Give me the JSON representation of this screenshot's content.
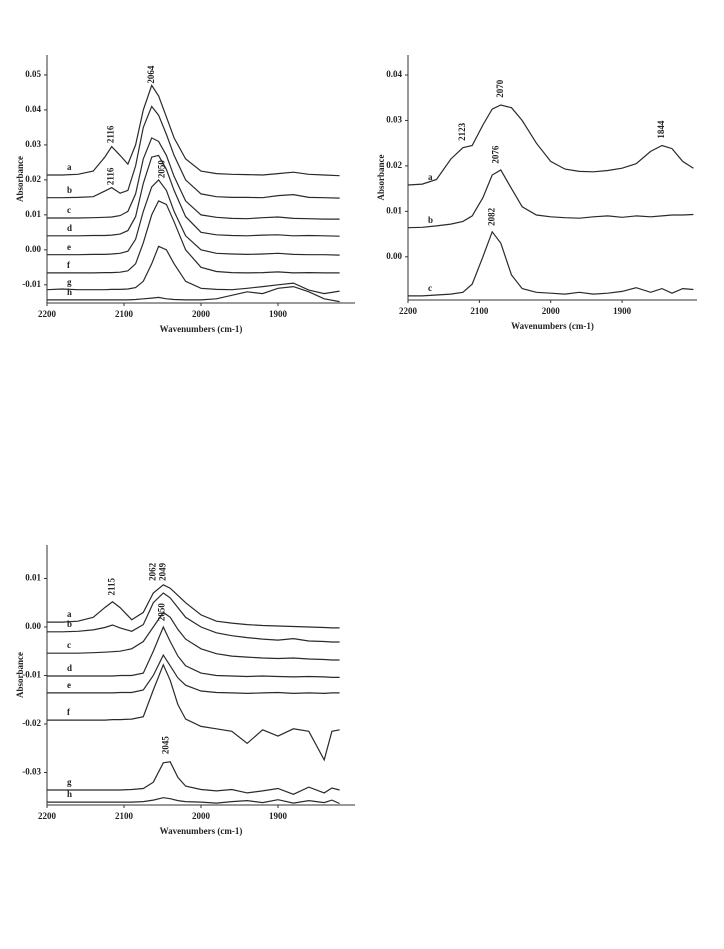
{
  "chart_data": [
    {
      "type": "line",
      "xlabel": "Wavenumbers (cm-1)",
      "ylabel": "Absorbance",
      "color": "#2a2a2a",
      "xlim": [
        2200,
        1800
      ],
      "xticks": [
        2200,
        2100,
        2000,
        1900
      ],
      "ylim": [
        -0.0152,
        0.0557
      ],
      "yticks": [
        0.05,
        0.04,
        0.03,
        0.02,
        0.01,
        {
          "value": 0,
          "label": "0.00"
        },
        -0.01
      ],
      "x": [
        2200,
        2180,
        2160,
        2140,
        2125,
        2116,
        2105,
        2095,
        2085,
        2075,
        2064,
        2055,
        2045,
        2035,
        2020,
        2000,
        1980,
        1960,
        1940,
        1920,
        1900,
        1880,
        1860,
        1840,
        1820
      ],
      "series": [
        {
          "name": "a",
          "values": [
            0.0214,
            0.0214,
            0.0216,
            0.0225,
            0.0265,
            0.0295,
            0.027,
            0.0245,
            0.03,
            0.04,
            0.047,
            0.044,
            0.038,
            0.032,
            0.026,
            0.0225,
            0.0218,
            0.0216,
            0.0215,
            0.0214,
            0.0218,
            0.0222,
            0.0216,
            0.0214,
            0.0212
          ]
        },
        {
          "name": "b",
          "values": [
            0.0149,
            0.0149,
            0.015,
            0.0152,
            0.0168,
            0.0178,
            0.0162,
            0.017,
            0.024,
            0.035,
            0.041,
            0.0385,
            0.033,
            0.027,
            0.02,
            0.016,
            0.0152,
            0.015,
            0.015,
            0.0149,
            0.0155,
            0.0158,
            0.015,
            0.0149,
            0.0148
          ]
        },
        {
          "name": "c",
          "values": [
            0.0091,
            0.0091,
            0.0091,
            0.0092,
            0.0093,
            0.0094,
            0.0098,
            0.011,
            0.016,
            0.026,
            0.032,
            0.031,
            0.027,
            0.021,
            0.014,
            0.01,
            0.0093,
            0.009,
            0.0089,
            0.0092,
            0.0094,
            0.009,
            0.0089,
            0.0088,
            0.0088
          ]
        },
        {
          "name": "d",
          "values": [
            0.004,
            0.004,
            0.004,
            0.0041,
            0.0041,
            0.0042,
            0.0045,
            0.0055,
            0.0095,
            0.019,
            0.0265,
            0.027,
            0.023,
            0.017,
            0.0095,
            0.005,
            0.0043,
            0.0041,
            0.004,
            0.0042,
            0.0043,
            0.004,
            0.0041,
            0.004,
            0.0039
          ]
        },
        {
          "name": "e",
          "values": [
            -0.0014,
            -0.0014,
            -0.0014,
            -0.0013,
            -0.0013,
            -0.0012,
            -0.001,
            -0.0004,
            0.003,
            0.011,
            0.018,
            0.02,
            0.017,
            0.011,
            0.004,
            0.0,
            -0.001,
            -0.0012,
            -0.0013,
            -0.0012,
            -0.001,
            -0.0013,
            -0.0014,
            -0.0014,
            -0.0015
          ]
        },
        {
          "name": "f",
          "values": [
            -0.0066,
            -0.0066,
            -0.0066,
            -0.0066,
            -0.0065,
            -0.0065,
            -0.0064,
            -0.006,
            -0.004,
            0.002,
            0.01,
            0.014,
            0.013,
            0.008,
            0.0,
            -0.005,
            -0.0062,
            -0.0065,
            -0.0066,
            -0.0065,
            -0.0063,
            -0.0066,
            -0.0065,
            -0.0066,
            -0.0066
          ]
        },
        {
          "name": "g",
          "values": [
            -0.0114,
            -0.0112,
            -0.0114,
            -0.0114,
            -0.0114,
            -0.0113,
            -0.0113,
            -0.0112,
            -0.0108,
            -0.009,
            -0.004,
            0.001,
            0.0,
            -0.004,
            -0.009,
            -0.011,
            -0.0113,
            -0.0114,
            -0.011,
            -0.0105,
            -0.01,
            -0.0095,
            -0.0115,
            -0.0125,
            -0.0118
          ]
        },
        {
          "name": "h",
          "values": [
            -0.0143,
            -0.0143,
            -0.0143,
            -0.0143,
            -0.0143,
            -0.0143,
            -0.0143,
            -0.0143,
            -0.0142,
            -0.014,
            -0.0138,
            -0.0136,
            -0.014,
            -0.0142,
            -0.0143,
            -0.0143,
            -0.014,
            -0.013,
            -0.012,
            -0.0125,
            -0.011,
            -0.0105,
            -0.012,
            -0.014,
            -0.0148
          ]
        }
      ],
      "annotations": [
        {
          "label": "2064",
          "x": 2064,
          "y": 0.0475
        },
        {
          "label": "2116",
          "x": 2116,
          "y": 0.0305
        },
        {
          "label": "2116",
          "x": 2116,
          "y": 0.0185
        },
        {
          "label": "2050",
          "x": 2050,
          "y": 0.0205
        }
      ]
    },
    {
      "type": "line",
      "xlabel": "Wavenumbers (cm-1)",
      "ylabel": "Absorbance",
      "color": "#2a2a2a",
      "xlim": [
        2200,
        1795
      ],
      "xticks": [
        2200,
        2100,
        2000,
        1900
      ],
      "ylim": [
        -0.0095,
        0.0444
      ],
      "yticks": [
        0.04,
        0.03,
        0.02,
        0.01,
        {
          "value": 0,
          "label": "0.00"
        }
      ],
      "x": [
        2200,
        2180,
        2160,
        2140,
        2123,
        2110,
        2095,
        2082,
        2070,
        2055,
        2040,
        2020,
        2000,
        1980,
        1960,
        1940,
        1920,
        1900,
        1880,
        1860,
        1844,
        1830,
        1815,
        1800
      ],
      "series": [
        {
          "name": "a",
          "values": [
            0.0158,
            0.016,
            0.017,
            0.0215,
            0.024,
            0.0245,
            0.029,
            0.0325,
            0.0334,
            0.0328,
            0.03,
            0.025,
            0.021,
            0.0193,
            0.0188,
            0.0187,
            0.019,
            0.0195,
            0.0205,
            0.0232,
            0.0245,
            0.0238,
            0.021,
            0.0195
          ]
        },
        {
          "name": "b",
          "values": [
            0.0064,
            0.0065,
            0.0068,
            0.0072,
            0.0078,
            0.009,
            0.013,
            0.018,
            0.0191,
            0.015,
            0.011,
            0.0092,
            0.0088,
            0.0086,
            0.0085,
            0.0088,
            0.009,
            0.0087,
            0.009,
            0.0088,
            0.009,
            0.0092,
            0.0092,
            0.0093
          ]
        },
        {
          "name": "c",
          "values": [
            -0.0086,
            -0.0086,
            -0.0084,
            -0.0082,
            -0.0078,
            -0.006,
            0.0,
            0.0055,
            0.003,
            -0.004,
            -0.007,
            -0.0078,
            -0.008,
            -0.0082,
            -0.0078,
            -0.0082,
            -0.008,
            -0.0076,
            -0.0068,
            -0.0078,
            -0.007,
            -0.008,
            -0.007,
            -0.0072
          ]
        }
      ],
      "annotations": [
        {
          "label": "2123",
          "x": 2123,
          "y": 0.0255
        },
        {
          "label": "2070",
          "x": 2070,
          "y": 0.035
        },
        {
          "label": "1844",
          "x": 1844,
          "y": 0.026
        },
        {
          "label": "2076",
          "x": 2076,
          "y": 0.0205
        },
        {
          "label": "2082",
          "x": 2082,
          "y": 0.0068
        }
      ]
    },
    {
      "type": "line",
      "xlabel": "Wavenumbers (cm-1)",
      "ylabel": "Absorbance",
      "color": "#2a2a2a",
      "xlim": [
        2200,
        1800
      ],
      "xticks": [
        2200,
        2100,
        2000,
        1900
      ],
      "ylim": [
        -0.0367,
        0.0169
      ],
      "yticks": [
        0.01,
        {
          "value": 0,
          "label": "0.00"
        },
        -0.01,
        -0.02,
        -0.03
      ],
      "x": [
        2200,
        2180,
        2160,
        2140,
        2125,
        2115,
        2105,
        2090,
        2075,
        2062,
        2049,
        2040,
        2030,
        2020,
        2000,
        1980,
        1960,
        1940,
        1920,
        1900,
        1880,
        1860,
        1840,
        1830,
        1820
      ],
      "series": [
        {
          "name": "a",
          "values": [
            0.001,
            0.001,
            0.0012,
            0.002,
            0.004,
            0.0052,
            0.004,
            0.0015,
            0.003,
            0.007,
            0.0087,
            0.008,
            0.0065,
            0.005,
            0.0025,
            0.0012,
            0.0008,
            0.0005,
            0.0003,
            0.0002,
            0.0001,
            0.0,
            -0.0001,
            -0.0002,
            -0.0002
          ]
        },
        {
          "name": "b",
          "values": [
            -0.001,
            -0.001,
            -0.0009,
            -0.0006,
            -0.0001,
            0.0004,
            -0.0002,
            -0.0009,
            0.0005,
            0.005,
            0.007,
            0.006,
            0.004,
            0.002,
            0.0,
            -0.0012,
            -0.0018,
            -0.0022,
            -0.0025,
            -0.0027,
            -0.0024,
            -0.0029,
            -0.003,
            -0.0031,
            -0.0031
          ]
        },
        {
          "name": "c",
          "values": [
            -0.0054,
            -0.0054,
            -0.0054,
            -0.0053,
            -0.0052,
            -0.0051,
            -0.005,
            -0.0045,
            -0.003,
            0.0,
            0.003,
            0.002,
            -0.0005,
            -0.0025,
            -0.0045,
            -0.0055,
            -0.006,
            -0.0062,
            -0.0064,
            -0.0065,
            -0.0064,
            -0.0066,
            -0.0067,
            -0.0068,
            -0.0068
          ]
        },
        {
          "name": "d",
          "values": [
            -0.0101,
            -0.0101,
            -0.0101,
            -0.0101,
            -0.0101,
            -0.0101,
            -0.01,
            -0.01,
            -0.0095,
            -0.005,
            0.0,
            -0.003,
            -0.006,
            -0.008,
            -0.0095,
            -0.01,
            -0.0101,
            -0.0102,
            -0.0101,
            -0.0102,
            -0.0103,
            -0.0102,
            -0.0103,
            -0.0104,
            -0.0104
          ]
        },
        {
          "name": "e",
          "values": [
            -0.0136,
            -0.0136,
            -0.0136,
            -0.0136,
            -0.0136,
            -0.0136,
            -0.0135,
            -0.0135,
            -0.013,
            -0.01,
            -0.0058,
            -0.008,
            -0.0105,
            -0.012,
            -0.0132,
            -0.0135,
            -0.0136,
            -0.0137,
            -0.0136,
            -0.0135,
            -0.0137,
            -0.0136,
            -0.0137,
            -0.0136,
            -0.0136
          ]
        },
        {
          "name": "f",
          "values": [
            -0.0192,
            -0.0192,
            -0.0192,
            -0.0192,
            -0.0192,
            -0.0191,
            -0.0191,
            -0.019,
            -0.0185,
            -0.013,
            -0.0078,
            -0.011,
            -0.016,
            -0.019,
            -0.0205,
            -0.021,
            -0.0215,
            -0.024,
            -0.0212,
            -0.0225,
            -0.021,
            -0.0215,
            -0.0274,
            -0.0215,
            -0.0212
          ]
        },
        {
          "name": "g",
          "values": [
            -0.0336,
            -0.0336,
            -0.0336,
            -0.0336,
            -0.0336,
            -0.0336,
            -0.0336,
            -0.0335,
            -0.0333,
            -0.032,
            -0.028,
            -0.0278,
            -0.031,
            -0.0328,
            -0.0335,
            -0.0338,
            -0.0335,
            -0.0342,
            -0.0338,
            -0.0333,
            -0.0345,
            -0.033,
            -0.0342,
            -0.0332,
            -0.0336
          ]
        },
        {
          "name": "h",
          "values": [
            -0.0361,
            -0.0361,
            -0.0361,
            -0.0361,
            -0.0361,
            -0.0361,
            -0.0361,
            -0.0361,
            -0.036,
            -0.0357,
            -0.0352,
            -0.0354,
            -0.0358,
            -0.036,
            -0.0361,
            -0.0363,
            -0.036,
            -0.0358,
            -0.0362,
            -0.0356,
            -0.0363,
            -0.0358,
            -0.0362,
            -0.0357,
            -0.0364
          ]
        }
      ],
      "annotations": [
        {
          "label": "2115",
          "x": 2115,
          "y": 0.0065
        },
        {
          "label": "2062",
          "x": 2062,
          "y": 0.0095
        },
        {
          "label": "2049",
          "x": 2049,
          "y": 0.0095
        },
        {
          "label": "2050",
          "x": 2050,
          "y": 0.0012
        },
        {
          "label": "2045",
          "x": 2045,
          "y": -0.0262
        }
      ]
    }
  ]
}
